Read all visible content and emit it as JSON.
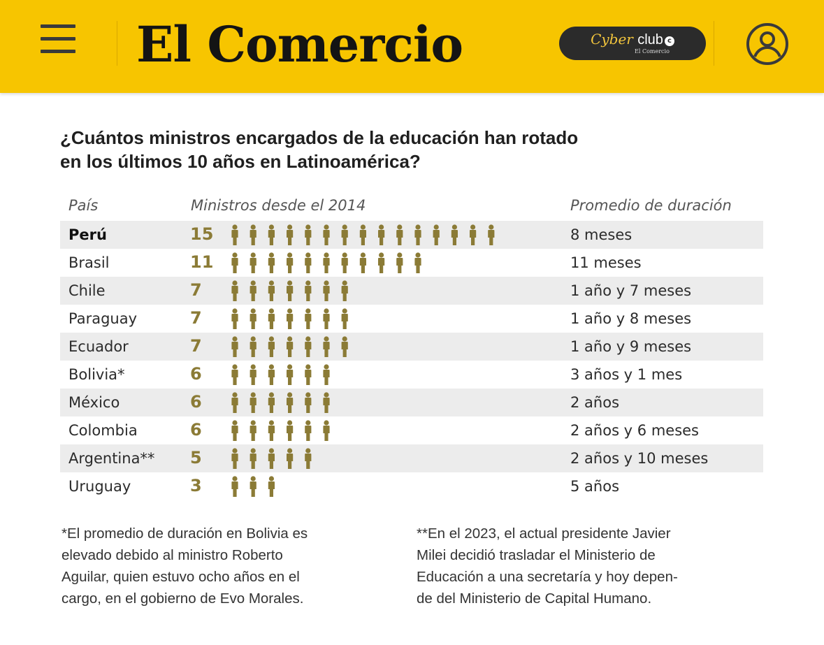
{
  "header": {
    "menu_icon": "hamburger-menu-icon",
    "logo_text": "El Comercio",
    "cyber_club": {
      "word1": "Cyber",
      "word2": "club",
      "dot": "c",
      "sub": "El Comercio"
    },
    "user_icon": "user-account-icon",
    "bg_color": "#f7c500"
  },
  "chart_data": {
    "type": "table",
    "title_line1": "¿Cuántos ministros encargados de la educación han rotado",
    "title_line2": "en los últimos 10 años en Latinoamérica?",
    "col_country": "País",
    "col_ministers": "Ministros desde el 2014",
    "col_duration": "Promedio de duración",
    "icon_color": "#8b7b36",
    "rows": [
      {
        "country": "Perú",
        "count": 15,
        "count_label": "15",
        "duration": "8 meses",
        "bold": true
      },
      {
        "country": "Brasil",
        "count": 11,
        "count_label": "11",
        "duration": "11 meses"
      },
      {
        "country": "Chile",
        "count": 7,
        "count_label": "7",
        "duration": "1 año y 7 meses"
      },
      {
        "country": "Paraguay",
        "count": 7,
        "count_label": "7",
        "duration": "1 año y 8 meses"
      },
      {
        "country": "Ecuador",
        "count": 7,
        "count_label": "7",
        "duration": "1 año y 9 meses"
      },
      {
        "country": "Bolivia*",
        "count": 6,
        "count_label": "6",
        "duration": "3 años y 1 mes"
      },
      {
        "country": "México",
        "count": 6,
        "count_label": "6",
        "duration": "2 años"
      },
      {
        "country": "Colombia",
        "count": 6,
        "count_label": "6",
        "duration": "2 años y 6 meses"
      },
      {
        "country": "Argentina**",
        "count": 5,
        "count_label": "5",
        "duration": "2 años y 10 meses"
      },
      {
        "country": "Uruguay",
        "count": 3,
        "count_label": "3",
        "duration": "5 años"
      }
    ],
    "note1": [
      "*El promedio de duración en Bolivia es",
      "elevado debido al ministro Roberto",
      "Aguilar, quien estuvo ocho años en el",
      "cargo, en el gobierno de Evo Morales."
    ],
    "note2": [
      "**En el 2023, el actual presidente Javier",
      "Milei decidió trasladar el Ministerio de",
      "Educación a una secretaría y hoy depen-",
      "de del Ministerio de Capital Humano."
    ]
  }
}
